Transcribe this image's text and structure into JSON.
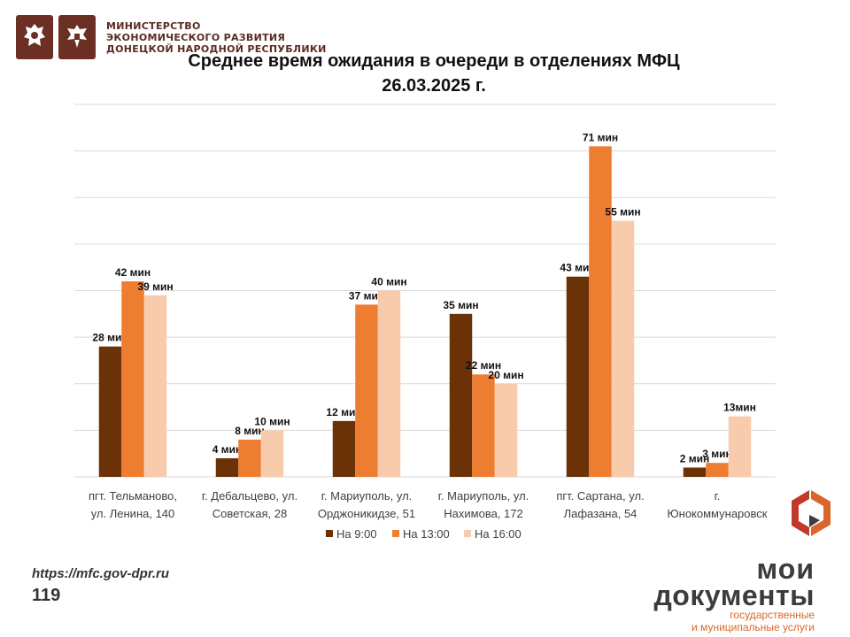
{
  "header": {
    "ministry_line1": "МИНИСТЕРСТВО",
    "ministry_line2": "ЭКОНОМИЧЕСКОГО РАЗВИТИЯ",
    "ministry_line3": "ДОНЕЦКОЙ НАРОДНОЙ РЕСПУБЛИКИ"
  },
  "title_line1": "Среднее время ожидания в очереди в отделениях МФЦ",
  "title_line2": "26.03.2025   г.",
  "footer": {
    "url": "https://mfc.gov-dpr.ru",
    "number": "119"
  },
  "brand": {
    "word1": "мои",
    "word2": "документы",
    "tagline1": "государственные",
    "tagline2": "и муниципальные услуги"
  },
  "colors": {
    "series_9": "#6b3208",
    "series_13": "#ed7d31",
    "series_16": "#f8cbad",
    "brand_red": "#c0392b",
    "brand_orange": "#d9662a"
  },
  "chart_data": {
    "type": "bar",
    "title": "Среднее время ожидания в очереди в отделениях МФЦ",
    "categories": [
      [
        "пгт. Тельманово,",
        "ул. Ленина, 140"
      ],
      [
        "г. Дебальцево, ул.",
        "Советская, 28"
      ],
      [
        "г. Мариуполь, ул.",
        "Орджоникидзе, 51"
      ],
      [
        "г. Мариуполь, ул.",
        "Нахимова, 172"
      ],
      [
        "пгт. Сартана, ул.",
        "Лафазана, 54"
      ],
      [
        "г.",
        "Юнокоммунаровск"
      ]
    ],
    "series": [
      {
        "name": "На 9:00",
        "color": "#6b3208",
        "values": [
          28,
          4,
          12,
          35,
          43,
          2
        ],
        "labels": [
          "28 мин",
          "4 мин",
          "12 мин",
          "35 мин",
          "43 мин",
          "2 мин"
        ]
      },
      {
        "name": "На 13:00",
        "color": "#ed7d31",
        "values": [
          42,
          8,
          37,
          22,
          71,
          3
        ],
        "labels": [
          "42 мин",
          "8 мин",
          "37 мин",
          "22 мин",
          "71 мин",
          "3 мин"
        ]
      },
      {
        "name": "На 16:00",
        "color": "#f8cbad",
        "values": [
          39,
          10,
          40,
          20,
          55,
          13
        ],
        "labels": [
          "39 мин",
          "10 мин",
          "40 мин",
          "20 мин",
          "55 мин",
          "13мин"
        ]
      }
    ],
    "ylim": [
      0,
      80
    ],
    "grid": true,
    "legend_position": "bottom"
  }
}
